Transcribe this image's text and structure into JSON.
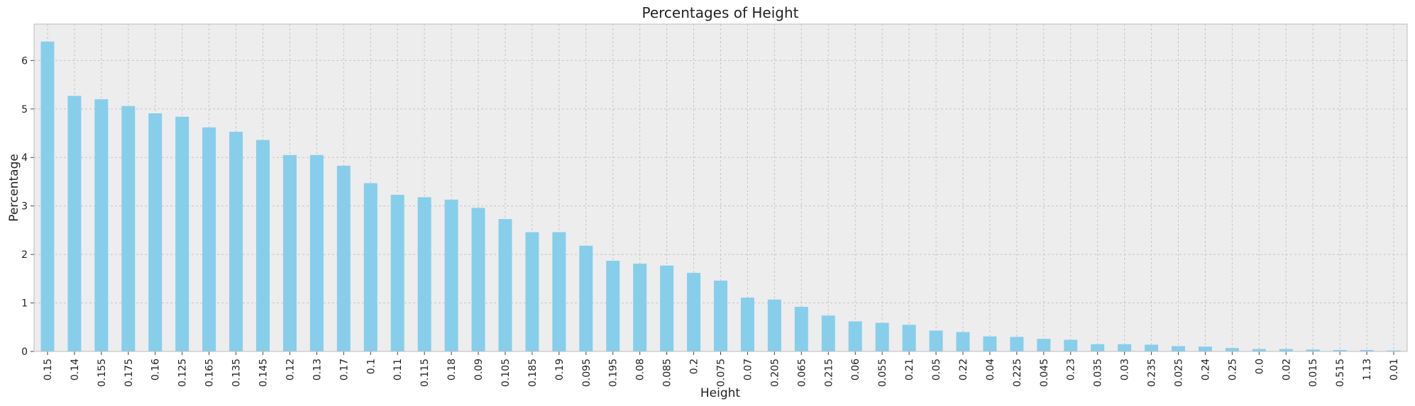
{
  "chart_data": {
    "type": "bar",
    "title": "Percentages of Height",
    "xlabel": "Height",
    "ylabel": "Percentage",
    "ylim": [
      0,
      6.75
    ],
    "yticks": [
      0,
      1,
      2,
      3,
      4,
      5,
      6
    ],
    "grid": true,
    "colors": {
      "bar": "#87ceeb",
      "plot_bg": "#ededed",
      "grid": "#c6c6c6",
      "frame": "#bcbcbc",
      "tick": "#444444"
    },
    "categories": [
      "0.15",
      "0.14",
      "0.155",
      "0.175",
      "0.16",
      "0.125",
      "0.165",
      "0.135",
      "0.145",
      "0.12",
      "0.13",
      "0.17",
      "0.1",
      "0.11",
      "0.115",
      "0.18",
      "0.09",
      "0.105",
      "0.185",
      "0.19",
      "0.095",
      "0.195",
      "0.08",
      "0.085",
      "0.2",
      "0.075",
      "0.07",
      "0.205",
      "0.065",
      "0.215",
      "0.06",
      "0.055",
      "0.21",
      "0.05",
      "0.22",
      "0.04",
      "0.225",
      "0.045",
      "0.23",
      "0.035",
      "0.03",
      "0.235",
      "0.025",
      "0.24",
      "0.25",
      "0.0",
      "0.02",
      "0.015",
      "0.515",
      "1.13",
      "0.01"
    ],
    "values": [
      6.39,
      5.27,
      5.2,
      5.06,
      4.91,
      4.84,
      4.62,
      4.53,
      4.36,
      4.05,
      4.05,
      3.83,
      3.47,
      3.23,
      3.18,
      3.13,
      2.96,
      2.73,
      2.46,
      2.46,
      2.18,
      1.87,
      1.81,
      1.77,
      1.62,
      1.46,
      1.11,
      1.07,
      0.92,
      0.74,
      0.62,
      0.59,
      0.55,
      0.43,
      0.4,
      0.31,
      0.3,
      0.26,
      0.24,
      0.15,
      0.15,
      0.14,
      0.11,
      0.1,
      0.07,
      0.05,
      0.05,
      0.04,
      0.03,
      0.03,
      0.02
    ]
  }
}
